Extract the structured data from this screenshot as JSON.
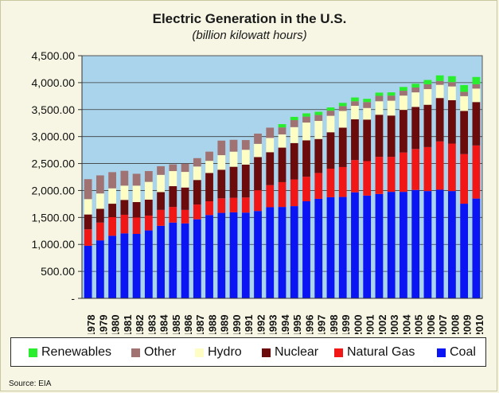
{
  "chart_data": {
    "type": "bar",
    "stacked": true,
    "title": "Electric Generation in the U.S.",
    "subtitle": "(billion kilowatt hours)",
    "xlabel": "",
    "ylabel": "",
    "ylim": [
      0,
      4500
    ],
    "yticks": [
      0,
      500,
      1000,
      1500,
      2000,
      2500,
      3000,
      3500,
      4000,
      4500
    ],
    "ytick_labels": [
      "-",
      "500.00",
      "1,000.00",
      "1,500.00",
      "2,000.00",
      "2,500.00",
      "3,000.00",
      "3,500.00",
      "4,000.00",
      "4,500.00"
    ],
    "grid": true,
    "legend_position": "bottom",
    "categories": [
      "1978",
      "1979",
      "1980",
      "1981",
      "1982",
      "1983",
      "1984",
      "1985",
      "1986",
      "1987",
      "1988",
      "1989",
      "1990",
      "1991",
      "1992",
      "1993",
      "1994",
      "1995",
      "1996",
      "1997",
      "1998",
      "1999",
      "2000",
      "2001",
      "2002",
      "2003",
      "2004",
      "2005",
      "2006",
      "2007",
      "2008",
      "2009",
      "2010"
    ],
    "series": [
      {
        "name": "Coal",
        "color": "#0b14f2",
        "values": [
          975,
          1075,
          1160,
          1205,
          1195,
          1260,
          1345,
          1405,
          1390,
          1465,
          1545,
          1585,
          1595,
          1590,
          1620,
          1690,
          1695,
          1710,
          1800,
          1845,
          1875,
          1880,
          1965,
          1905,
          1935,
          1975,
          1975,
          2010,
          1990,
          2015,
          1990,
          1755,
          1850
        ]
      },
      {
        "name": "Natural Gas",
        "color": "#f11717",
        "values": [
          305,
          330,
          345,
          345,
          305,
          275,
          295,
          290,
          250,
          275,
          255,
          270,
          270,
          280,
          385,
          410,
          460,
          495,
          455,
          480,
          530,
          555,
          600,
          640,
          690,
          650,
          730,
          760,
          815,
          895,
          880,
          920,
          985
        ]
      },
      {
        "name": "Nuclear",
        "color": "#6b0b0b",
        "values": [
          275,
          255,
          250,
          275,
          285,
          295,
          330,
          385,
          415,
          455,
          525,
          530,
          575,
          610,
          615,
          610,
          640,
          675,
          675,
          630,
          675,
          730,
          755,
          770,
          780,
          765,
          790,
          780,
          785,
          805,
          805,
          800,
          805
        ]
      },
      {
        "name": "Hydro",
        "color": "#fefdc3",
        "values": [
          285,
          285,
          285,
          265,
          305,
          330,
          320,
          280,
          290,
          250,
          225,
          270,
          280,
          275,
          245,
          265,
          245,
          295,
          330,
          335,
          305,
          310,
          250,
          215,
          250,
          275,
          265,
          270,
          290,
          245,
          255,
          275,
          250
        ]
      },
      {
        "name": "Other",
        "color": "#a07272",
        "values": [
          370,
          335,
          300,
          275,
          220,
          200,
          160,
          125,
          150,
          155,
          170,
          270,
          220,
          180,
          190,
          190,
          130,
          130,
          110,
          110,
          95,
          90,
          85,
          110,
          100,
          95,
          90,
          90,
          90,
          70,
          80,
          80,
          80
        ]
      },
      {
        "name": "Renewables",
        "color": "#28ee2e",
        "values": [
          0,
          0,
          0,
          0,
          0,
          0,
          0,
          0,
          0,
          0,
          0,
          0,
          0,
          0,
          0,
          0,
          60,
          60,
          60,
          60,
          60,
          60,
          70,
          60,
          60,
          60,
          70,
          70,
          80,
          105,
          110,
          125,
          135
        ]
      }
    ],
    "legend_order": [
      "Renewables",
      "Other",
      "Hydro",
      "Nuclear",
      "Natural Gas",
      "Coal"
    ]
  },
  "source": "Source: EIA",
  "colors": {
    "plot_background": "#a9d4ec",
    "page_background": "#f7f6e4",
    "gridline": "#3a3a3a"
  }
}
